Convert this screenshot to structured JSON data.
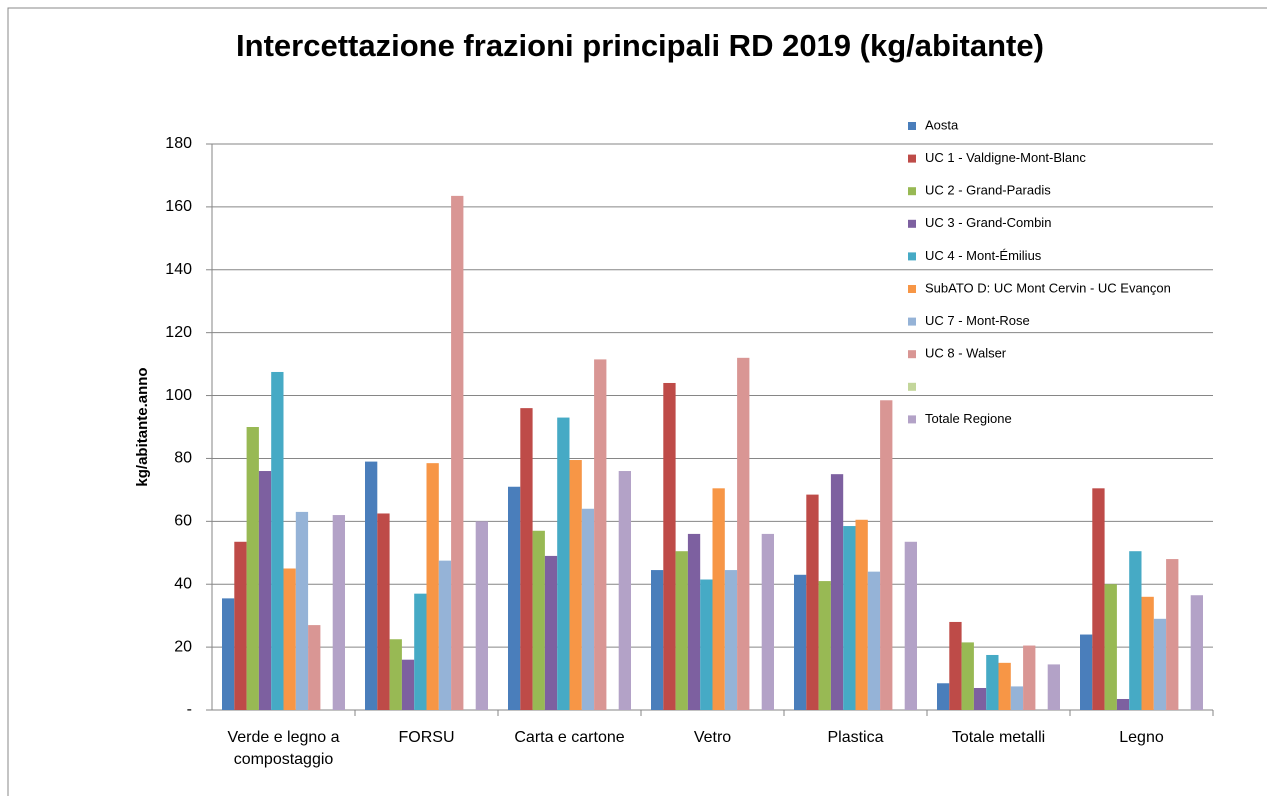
{
  "chart_data": {
    "type": "bar",
    "title": "Intercettazione frazioni principali RD 2019 (kg/abitante)",
    "y_label": "kg/abitante.anno",
    "categories": [
      "Verde e legno a compostaggio",
      "FORSU",
      "Carta e cartone",
      "Vetro",
      "Plastica",
      "Totale metalli",
      "Legno"
    ],
    "series": [
      {
        "name": "Aosta",
        "color": "#4a7ebb",
        "values": [
          35.5,
          79,
          71,
          44.5,
          43,
          8.5,
          24
        ]
      },
      {
        "name": "UC 1 - Valdigne-Mont-Blanc",
        "color": "#be4b48",
        "values": [
          53.5,
          62.5,
          96,
          104,
          68.5,
          28,
          70.5
        ]
      },
      {
        "name": "UC 2 - Grand-Paradis",
        "color": "#98b954",
        "values": [
          90,
          22.5,
          57,
          50.5,
          41,
          21.5,
          40
        ]
      },
      {
        "name": "UC 3 - Grand-Combin",
        "color": "#7d60a0",
        "values": [
          76,
          16,
          49,
          56,
          75,
          7,
          3.5
        ]
      },
      {
        "name": "UC 4 - Mont-Émilius",
        "color": "#46aac5",
        "values": [
          107.5,
          37,
          93,
          41.5,
          58.5,
          17.5,
          50.5
        ]
      },
      {
        "name": "SubATO D: UC Mont Cervin - UC Evançon",
        "color": "#f79646",
        "values": [
          45,
          78.5,
          79.5,
          70.5,
          60.5,
          15,
          36
        ]
      },
      {
        "name": "UC 7 - Mont-Rose",
        "color": "#95b3d7",
        "values": [
          63,
          47.5,
          64,
          44.5,
          44,
          7.5,
          29
        ]
      },
      {
        "name": "UC 8 - Walser",
        "color": "#d99694",
        "values": [
          27,
          163.5,
          111.5,
          112,
          98.5,
          20.5,
          48
        ]
      },
      {
        "name": null,
        "color": "#c3d69b",
        "values": [
          null,
          null,
          null,
          null,
          null,
          null,
          null
        ]
      },
      {
        "name": "Totale Regione",
        "color": "#b3a2c7",
        "values": [
          62,
          60,
          76,
          56,
          53.5,
          14.5,
          36.5
        ]
      }
    ],
    "ylim": [
      0,
      180
    ],
    "yticks": [
      {
        "value": 0,
        "label": "-"
      },
      20,
      40,
      60,
      80,
      100,
      120,
      140,
      160,
      180
    ],
    "grid": true,
    "legend": "right"
  }
}
